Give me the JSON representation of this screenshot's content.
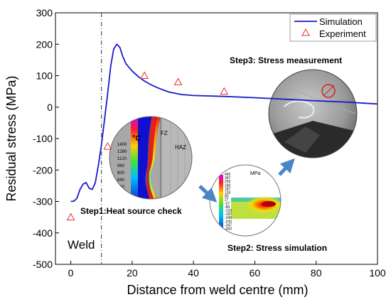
{
  "chart_data": {
    "type": "line",
    "xlabel": "Distance from weld centre (mm)",
    "ylabel": "Residual stress (MPa)",
    "xlim": [
      -5,
      100
    ],
    "ylim": [
      -500,
      300
    ],
    "x_ticks": [
      0,
      20,
      40,
      60,
      80,
      100
    ],
    "y_ticks": [
      -500,
      -400,
      -300,
      -200,
      -100,
      0,
      100,
      200,
      300
    ],
    "legend_position": "top-right",
    "weld_boundary_x": 10,
    "weld_label": "Weld",
    "series": [
      {
        "name": "Simulation",
        "color": "#1a1acc",
        "marker": "line",
        "points": [
          [
            0,
            -300
          ],
          [
            1,
            -299
          ],
          [
            2,
            -290
          ],
          [
            3,
            -262
          ],
          [
            4,
            -245
          ],
          [
            5,
            -240
          ],
          [
            6,
            -258
          ],
          [
            7,
            -262
          ],
          [
            8,
            -240
          ],
          [
            9,
            -185
          ],
          [
            10,
            -120
          ],
          [
            11,
            -40
          ],
          [
            12,
            40
          ],
          [
            13,
            130
          ],
          [
            14,
            185
          ],
          [
            15,
            200
          ],
          [
            16,
            190
          ],
          [
            17,
            160
          ],
          [
            18,
            138
          ],
          [
            20,
            115
          ],
          [
            22,
            97
          ],
          [
            24,
            83
          ],
          [
            26,
            72
          ],
          [
            28,
            63
          ],
          [
            30,
            55
          ],
          [
            32,
            48
          ],
          [
            34,
            44
          ],
          [
            36,
            40
          ],
          [
            40,
            37
          ],
          [
            50,
            34
          ],
          [
            60,
            30
          ],
          [
            70,
            25
          ],
          [
            80,
            20
          ],
          [
            90,
            16
          ],
          [
            100,
            10
          ]
        ]
      },
      {
        "name": "Experiment",
        "color": "#e03030",
        "marker": "triangle",
        "points": [
          [
            0,
            -350
          ],
          [
            12,
            -125
          ],
          [
            24,
            100
          ],
          [
            35,
            80
          ],
          [
            50,
            50
          ]
        ]
      }
    ]
  },
  "annotations": {
    "step1": "Step1:Heat source check",
    "step2": "Step2: Stress simulation",
    "step3": "Step3: Stress measurement"
  },
  "inset1": {
    "unit": "°C",
    "scale": [
      "1400",
      "1280",
      "1120",
      "960",
      "800",
      "640",
      "480"
    ],
    "fz_label": "FZ",
    "haz_label": "HAZ"
  },
  "inset2": {
    "unit": "MPa",
    "scale": [
      "400",
      "347",
      "293",
      "240",
      "187",
      "133",
      "80",
      "27",
      "-27",
      "-80",
      "-133",
      "-187",
      "-240",
      "-293",
      "-347",
      "-400"
    ]
  },
  "colors": {
    "arrow": "#4a86c5"
  }
}
